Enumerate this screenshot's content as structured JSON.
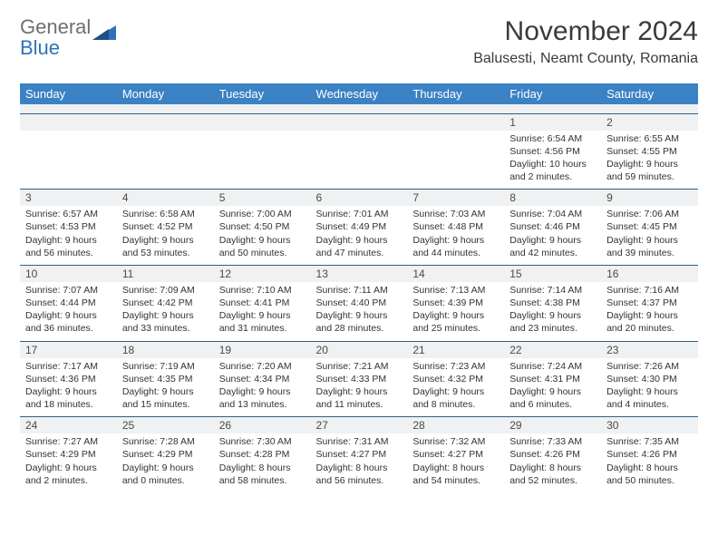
{
  "brand": {
    "word1": "General",
    "word2": "Blue"
  },
  "title": "November 2024",
  "location": "Balusesti, Neamt County, Romania",
  "colors": {
    "header_bg": "#3b82c4",
    "header_text": "#ffffff",
    "daynum_bg": "#eff1f2",
    "border": "#2f5f87",
    "logo_gray": "#6f6f6f",
    "logo_blue": "#2f72b8",
    "text": "#333333"
  },
  "day_headers": [
    "Sunday",
    "Monday",
    "Tuesday",
    "Wednesday",
    "Thursday",
    "Friday",
    "Saturday"
  ],
  "weeks": [
    [
      {
        "n": "",
        "sr": "",
        "ss": "",
        "d": ""
      },
      {
        "n": "",
        "sr": "",
        "ss": "",
        "d": ""
      },
      {
        "n": "",
        "sr": "",
        "ss": "",
        "d": ""
      },
      {
        "n": "",
        "sr": "",
        "ss": "",
        "d": ""
      },
      {
        "n": "",
        "sr": "",
        "ss": "",
        "d": ""
      },
      {
        "n": "1",
        "sr": "Sunrise: 6:54 AM",
        "ss": "Sunset: 4:56 PM",
        "d": "Daylight: 10 hours and 2 minutes."
      },
      {
        "n": "2",
        "sr": "Sunrise: 6:55 AM",
        "ss": "Sunset: 4:55 PM",
        "d": "Daylight: 9 hours and 59 minutes."
      }
    ],
    [
      {
        "n": "3",
        "sr": "Sunrise: 6:57 AM",
        "ss": "Sunset: 4:53 PM",
        "d": "Daylight: 9 hours and 56 minutes."
      },
      {
        "n": "4",
        "sr": "Sunrise: 6:58 AM",
        "ss": "Sunset: 4:52 PM",
        "d": "Daylight: 9 hours and 53 minutes."
      },
      {
        "n": "5",
        "sr": "Sunrise: 7:00 AM",
        "ss": "Sunset: 4:50 PM",
        "d": "Daylight: 9 hours and 50 minutes."
      },
      {
        "n": "6",
        "sr": "Sunrise: 7:01 AM",
        "ss": "Sunset: 4:49 PM",
        "d": "Daylight: 9 hours and 47 minutes."
      },
      {
        "n": "7",
        "sr": "Sunrise: 7:03 AM",
        "ss": "Sunset: 4:48 PM",
        "d": "Daylight: 9 hours and 44 minutes."
      },
      {
        "n": "8",
        "sr": "Sunrise: 7:04 AM",
        "ss": "Sunset: 4:46 PM",
        "d": "Daylight: 9 hours and 42 minutes."
      },
      {
        "n": "9",
        "sr": "Sunrise: 7:06 AM",
        "ss": "Sunset: 4:45 PM",
        "d": "Daylight: 9 hours and 39 minutes."
      }
    ],
    [
      {
        "n": "10",
        "sr": "Sunrise: 7:07 AM",
        "ss": "Sunset: 4:44 PM",
        "d": "Daylight: 9 hours and 36 minutes."
      },
      {
        "n": "11",
        "sr": "Sunrise: 7:09 AM",
        "ss": "Sunset: 4:42 PM",
        "d": "Daylight: 9 hours and 33 minutes."
      },
      {
        "n": "12",
        "sr": "Sunrise: 7:10 AM",
        "ss": "Sunset: 4:41 PM",
        "d": "Daylight: 9 hours and 31 minutes."
      },
      {
        "n": "13",
        "sr": "Sunrise: 7:11 AM",
        "ss": "Sunset: 4:40 PM",
        "d": "Daylight: 9 hours and 28 minutes."
      },
      {
        "n": "14",
        "sr": "Sunrise: 7:13 AM",
        "ss": "Sunset: 4:39 PM",
        "d": "Daylight: 9 hours and 25 minutes."
      },
      {
        "n": "15",
        "sr": "Sunrise: 7:14 AM",
        "ss": "Sunset: 4:38 PM",
        "d": "Daylight: 9 hours and 23 minutes."
      },
      {
        "n": "16",
        "sr": "Sunrise: 7:16 AM",
        "ss": "Sunset: 4:37 PM",
        "d": "Daylight: 9 hours and 20 minutes."
      }
    ],
    [
      {
        "n": "17",
        "sr": "Sunrise: 7:17 AM",
        "ss": "Sunset: 4:36 PM",
        "d": "Daylight: 9 hours and 18 minutes."
      },
      {
        "n": "18",
        "sr": "Sunrise: 7:19 AM",
        "ss": "Sunset: 4:35 PM",
        "d": "Daylight: 9 hours and 15 minutes."
      },
      {
        "n": "19",
        "sr": "Sunrise: 7:20 AM",
        "ss": "Sunset: 4:34 PM",
        "d": "Daylight: 9 hours and 13 minutes."
      },
      {
        "n": "20",
        "sr": "Sunrise: 7:21 AM",
        "ss": "Sunset: 4:33 PM",
        "d": "Daylight: 9 hours and 11 minutes."
      },
      {
        "n": "21",
        "sr": "Sunrise: 7:23 AM",
        "ss": "Sunset: 4:32 PM",
        "d": "Daylight: 9 hours and 8 minutes."
      },
      {
        "n": "22",
        "sr": "Sunrise: 7:24 AM",
        "ss": "Sunset: 4:31 PM",
        "d": "Daylight: 9 hours and 6 minutes."
      },
      {
        "n": "23",
        "sr": "Sunrise: 7:26 AM",
        "ss": "Sunset: 4:30 PM",
        "d": "Daylight: 9 hours and 4 minutes."
      }
    ],
    [
      {
        "n": "24",
        "sr": "Sunrise: 7:27 AM",
        "ss": "Sunset: 4:29 PM",
        "d": "Daylight: 9 hours and 2 minutes."
      },
      {
        "n": "25",
        "sr": "Sunrise: 7:28 AM",
        "ss": "Sunset: 4:29 PM",
        "d": "Daylight: 9 hours and 0 minutes."
      },
      {
        "n": "26",
        "sr": "Sunrise: 7:30 AM",
        "ss": "Sunset: 4:28 PM",
        "d": "Daylight: 8 hours and 58 minutes."
      },
      {
        "n": "27",
        "sr": "Sunrise: 7:31 AM",
        "ss": "Sunset: 4:27 PM",
        "d": "Daylight: 8 hours and 56 minutes."
      },
      {
        "n": "28",
        "sr": "Sunrise: 7:32 AM",
        "ss": "Sunset: 4:27 PM",
        "d": "Daylight: 8 hours and 54 minutes."
      },
      {
        "n": "29",
        "sr": "Sunrise: 7:33 AM",
        "ss": "Sunset: 4:26 PM",
        "d": "Daylight: 8 hours and 52 minutes."
      },
      {
        "n": "30",
        "sr": "Sunrise: 7:35 AM",
        "ss": "Sunset: 4:26 PM",
        "d": "Daylight: 8 hours and 50 minutes."
      }
    ]
  ]
}
